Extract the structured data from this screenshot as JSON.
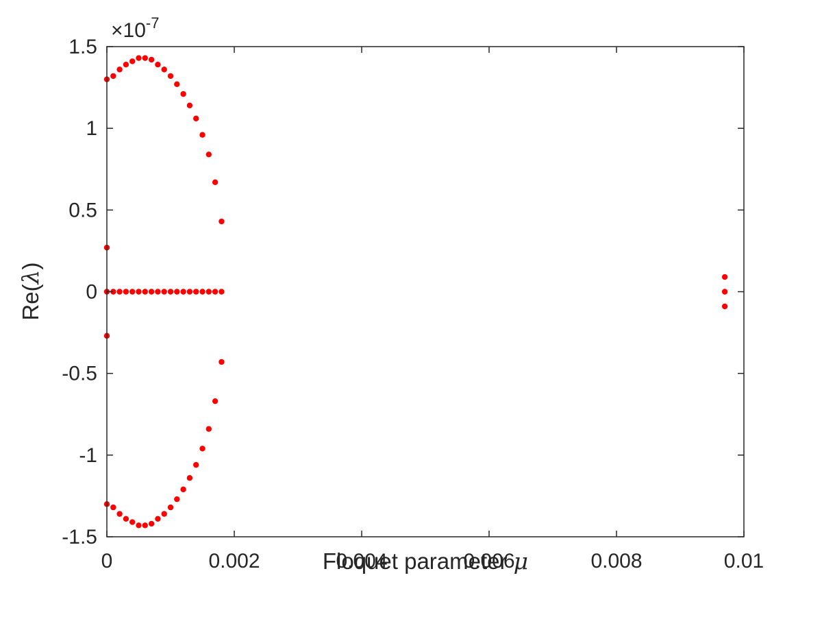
{
  "chart_data": {
    "type": "scatter",
    "title": "",
    "xlabel": "Floquet parameter",
    "xlabel_symbol": "μ",
    "ylabel_prefix": "Re(",
    "ylabel_symbol": "λ",
    "ylabel_suffix": ")",
    "y_exponent_prefix": "×10",
    "y_exponent_power": "-7",
    "xlim": [
      0,
      0.01
    ],
    "ylim": [
      -1.5,
      1.5
    ],
    "x_ticks": [
      0,
      0.002,
      0.004,
      0.006,
      0.008,
      0.01
    ],
    "x_tick_labels": [
      "0",
      "0.002",
      "0.004",
      "0.006",
      "0.008",
      "0.01"
    ],
    "y_ticks": [
      -1.5,
      -1,
      -0.5,
      0,
      0.5,
      1,
      1.5
    ],
    "y_tick_labels": [
      "-1.5",
      "-1",
      "-0.5",
      "0",
      "0.5",
      "1",
      "1.5"
    ],
    "grid": false,
    "marker_color": "#ff0000",
    "axis_color": "#262626",
    "series": [
      {
        "x": [
          0,
          0.0001,
          0.0002,
          0.0003,
          0.0004,
          0.0005,
          0.0006,
          0.0007,
          0.0008,
          0.0009,
          0.001,
          0.0011,
          0.0012,
          0.0013,
          0.0014,
          0.0015,
          0.0016,
          0.0017,
          0.0018,
          0,
          0.0001,
          0.0002,
          0.0003,
          0.0004,
          0.0005,
          0.0006,
          0.0007,
          0.0008,
          0.0009,
          0.001,
          0.0011,
          0.0012,
          0.0013,
          0.0014,
          0.0015,
          0.0016,
          0.0017,
          0.0018,
          0,
          0.0001,
          0.0002,
          0.0003,
          0.0004,
          0.0005,
          0.0006,
          0.0007,
          0.0008,
          0.0009,
          0.001,
          0.0011,
          0.0012,
          0.0013,
          0.0014,
          0.0015,
          0.0016,
          0.0017,
          0.0018,
          0,
          0,
          0.0097,
          0.0097,
          0.0097
        ],
        "y": [
          1.3,
          1.32,
          1.36,
          1.39,
          1.41,
          1.43,
          1.43,
          1.42,
          1.39,
          1.36,
          1.32,
          1.27,
          1.21,
          1.14,
          1.06,
          0.96,
          0.84,
          0.67,
          0.43,
          0,
          0,
          0,
          0,
          0,
          0,
          0,
          0,
          0,
          0,
          0,
          0,
          0,
          0,
          0,
          0,
          0,
          0,
          0,
          -1.3,
          -1.32,
          -1.36,
          -1.39,
          -1.41,
          -1.43,
          -1.43,
          -1.42,
          -1.39,
          -1.36,
          -1.32,
          -1.27,
          -1.21,
          -1.14,
          -1.06,
          -0.96,
          -0.84,
          -0.67,
          -0.43,
          0.27,
          -0.27,
          0.09,
          0,
          -0.09
        ]
      }
    ]
  }
}
